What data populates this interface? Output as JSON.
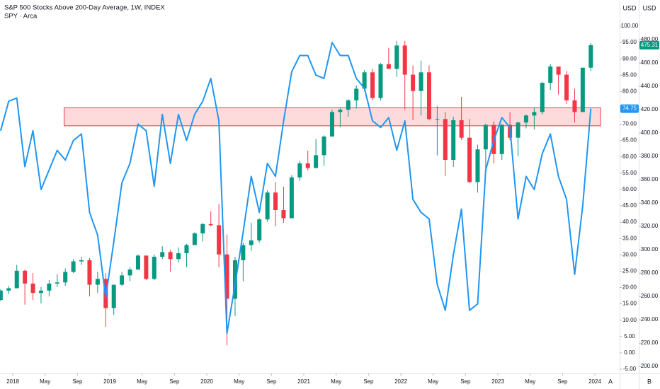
{
  "chart_data": {
    "type": "candlestick",
    "ylabel": "USD",
    "y2label": "USD",
    "categories": [
      "2017-11",
      "2017-12",
      "2018-01",
      "2018-02",
      "2018-03",
      "2018-04",
      "2018-05",
      "2018-06",
      "2018-07",
      "2018-08",
      "2018-09",
      "2018-10",
      "2018-11",
      "2018-12",
      "2019-01",
      "2019-02",
      "2019-03",
      "2019-04",
      "2019-05",
      "2019-06",
      "2019-07",
      "2019-08",
      "2019-09",
      "2019-10",
      "2019-11",
      "2019-12",
      "2020-01",
      "2020-02",
      "2020-03",
      "2020-04",
      "2020-05",
      "2020-06",
      "2020-07",
      "2020-08",
      "2020-09",
      "2020-10",
      "2020-11",
      "2020-12",
      "2021-01",
      "2021-02",
      "2021-03",
      "2021-04",
      "2021-05",
      "2021-06",
      "2021-07",
      "2021-08",
      "2021-09",
      "2021-10",
      "2021-11",
      "2021-12",
      "2022-01",
      "2022-02",
      "2022-03",
      "2022-04",
      "2022-05",
      "2022-06",
      "2022-07",
      "2022-08",
      "2022-09",
      "2022-10",
      "2022-11",
      "2022-12",
      "2023-01",
      "2023-02",
      "2023-03",
      "2023-04",
      "2023-05",
      "2023-06",
      "2023-07",
      "2023-08",
      "2023-09",
      "2023-10",
      "2023-11",
      "2023-12"
    ],
    "series": [
      {
        "name": "S&P 500 Stocks Above 200-Day Average, 1W, INDEX",
        "type": "line",
        "axis": "y",
        "color": "#2196f3",
        "values": [
          68,
          77,
          78,
          57,
          68,
          50,
          56,
          62,
          59,
          65,
          67,
          43,
          36,
          17,
          34,
          52,
          58,
          70,
          68,
          51,
          73,
          58,
          73,
          65,
          73,
          77,
          84,
          71,
          6,
          21,
          37,
          54,
          43,
          58,
          54,
          71,
          86,
          91,
          91,
          85,
          84,
          95,
          91,
          91,
          84,
          81,
          71,
          69,
          72,
          62,
          71,
          47,
          43,
          41,
          21,
          13,
          30,
          44,
          13,
          15,
          56,
          65,
          72,
          69,
          41,
          54,
          50,
          61,
          67,
          54,
          47,
          24,
          45,
          74.75
        ],
        "value_labels": {
          "73": "74.75"
        }
      },
      {
        "name": "SPY · Arca",
        "type": "candlestick",
        "axis": "y2",
        "up_color": "#089981",
        "down_color": "#f23645",
        "open": [
          257,
          265,
          267,
          282,
          271,
          263,
          265,
          271,
          272,
          281,
          290,
          291,
          270,
          275,
          250,
          270,
          278,
          283,
          295,
          275,
          294,
          298,
          292,
          297,
          304,
          314,
          322,
          321,
          296,
          258,
          291,
          304,
          308,
          326,
          349,
          334,
          327,
          362,
          374,
          370,
          381,
          397,
          418,
          420,
          428,
          438,
          452,
          430,
          459,
          455,
          475,
          450,
          436,
          452,
          412,
          412,
          377,
          411,
          396,
          358,
          386,
          407,
          382,
          407,
          396,
          409,
          415,
          418,
          443,
          457,
          450,
          428,
          418,
          456
        ],
        "high": [
          266,
          269,
          287,
          283,
          280,
          268,
          274,
          279,
          284,
          292,
          294,
          293,
          281,
          280,
          270,
          281,
          285,
          296,
          295,
          296,
          303,
          300,
          302,
          305,
          315,
          323,
          333,
          339,
          313,
          294,
          306,
          323,
          327,
          351,
          358,
          354,
          364,
          376,
          385,
          395,
          398,
          420,
          422,
          429,
          441,
          454,
          455,
          460,
          473,
          479,
          479,
          458,
          462,
          458,
          423,
          418,
          414,
          431,
          412,
          390,
          408,
          410,
          408,
          418,
          410,
          416,
          422,
          444,
          459,
          457,
          453,
          438,
          456,
          477
        ],
        "low": [
          256,
          262,
          267,
          253,
          257,
          254,
          260,
          268,
          269,
          280,
          287,
          260,
          263,
          234,
          244,
          269,
          273,
          283,
          274,
          274,
          292,
          281,
          289,
          285,
          304,
          307,
          320,
          285,
          218,
          243,
          273,
          299,
          306,
          324,
          320,
          323,
          327,
          359,
          368,
          370,
          372,
          397,
          405,
          414,
          421,
          436,
          428,
          428,
          455,
          448,
          420,
          411,
          415,
          411,
          381,
          363,
          371,
          394,
          357,
          349,
          368,
          374,
          377,
          394,
          380,
          404,
          403,
          416,
          437,
          433,
          425,
          409,
          418,
          453
        ],
        "close": [
          265,
          267,
          282,
          271,
          263,
          265,
          271,
          272,
          281,
          290,
          291,
          270,
          275,
          250,
          270,
          278,
          283,
          295,
          275,
          294,
          298,
          292,
          297,
          304,
          314,
          322,
          321,
          296,
          258,
          291,
          304,
          308,
          326,
          349,
          334,
          327,
          362,
          374,
          370,
          381,
          397,
          418,
          420,
          428,
          438,
          452,
          430,
          459,
          455,
          475,
          450,
          436,
          452,
          412,
          412,
          377,
          411,
          396,
          358,
          386,
          407,
          382,
          407,
          396,
          409,
          415,
          418,
          443,
          457,
          450,
          428,
          418,
          456,
          475.31
        ],
        "value_labels": {
          "73": "475.31"
        }
      }
    ],
    "zone": {
      "x": [
        "2018-07",
        "2023-12"
      ],
      "y": [
        69.5,
        75
      ],
      "color": "#f23645"
    },
    "ylim": [
      -6.3,
      108
    ],
    "yticks": [
      {
        "value": 100,
        "label": "100.00"
      },
      {
        "value": 95,
        "label": "95.00"
      },
      {
        "value": 90,
        "label": "90.00"
      },
      {
        "value": 85,
        "label": "85.00"
      },
      {
        "value": 80,
        "label": "80.00"
      },
      {
        "value": 75,
        "label": "75.00"
      },
      {
        "value": 70,
        "label": "70.00"
      },
      {
        "value": 65,
        "label": "65.00"
      },
      {
        "value": 60,
        "label": "60.00"
      },
      {
        "value": 55,
        "label": "55.00"
      },
      {
        "value": 50,
        "label": "50.00"
      },
      {
        "value": 45,
        "label": "45.00"
      },
      {
        "value": 40,
        "label": "40.00"
      },
      {
        "value": 35,
        "label": "35.00"
      },
      {
        "value": 30,
        "label": "30.00"
      },
      {
        "value": 25,
        "label": "25.00"
      },
      {
        "value": 20,
        "label": "20.00"
      },
      {
        "value": 15,
        "label": "15.00"
      },
      {
        "value": 10,
        "label": "10.00"
      },
      {
        "value": 5,
        "label": "5.00"
      },
      {
        "value": 0,
        "label": "0.00"
      },
      {
        "value": -5,
        "label": "-5.00"
      }
    ],
    "y2lim": [
      194,
      514
    ],
    "y2ticks": [
      {
        "value": 480,
        "label": "480.00"
      },
      {
        "value": 460,
        "label": "460.00"
      },
      {
        "value": 440,
        "label": "440.00"
      },
      {
        "value": 420,
        "label": "420.00"
      },
      {
        "value": 400,
        "label": "400.00"
      },
      {
        "value": 380,
        "label": "380.00"
      },
      {
        "value": 360,
        "label": "360.00"
      },
      {
        "value": 340,
        "label": "340.00"
      },
      {
        "value": 320,
        "label": "320.00"
      },
      {
        "value": 300,
        "label": "300.00"
      },
      {
        "value": 280,
        "label": "280.00"
      },
      {
        "value": 260,
        "label": "260.00"
      },
      {
        "value": 240,
        "label": "240.00"
      },
      {
        "value": 220,
        "label": "220.00"
      },
      {
        "value": 200,
        "label": "200.00"
      }
    ],
    "xticks": [
      {
        "value": "2018-01",
        "label": "2018"
      },
      {
        "value": "2018-05",
        "label": "May"
      },
      {
        "value": "2018-09",
        "label": "Sep"
      },
      {
        "value": "2019-01",
        "label": "2019"
      },
      {
        "value": "2019-05",
        "label": "May"
      },
      {
        "value": "2019-09",
        "label": "Sep"
      },
      {
        "value": "2020-01",
        "label": "2020"
      },
      {
        "value": "2020-05",
        "label": "May"
      },
      {
        "value": "2020-09",
        "label": "Sep"
      },
      {
        "value": "2021-01",
        "label": "2021"
      },
      {
        "value": "2021-05",
        "label": "May"
      },
      {
        "value": "2021-09",
        "label": "Sep"
      },
      {
        "value": "2022-01",
        "label": "2022"
      },
      {
        "value": "2022-05",
        "label": "May"
      },
      {
        "value": "2022-09",
        "label": "Sep"
      },
      {
        "value": "2023-01",
        "label": "2023"
      },
      {
        "value": "2023-05",
        "label": "May"
      },
      {
        "value": "2023-09",
        "label": "Sep"
      },
      {
        "value": "2023-12",
        "label": "2024"
      }
    ],
    "grid": false
  },
  "controls": [
    "A",
    "B"
  ]
}
